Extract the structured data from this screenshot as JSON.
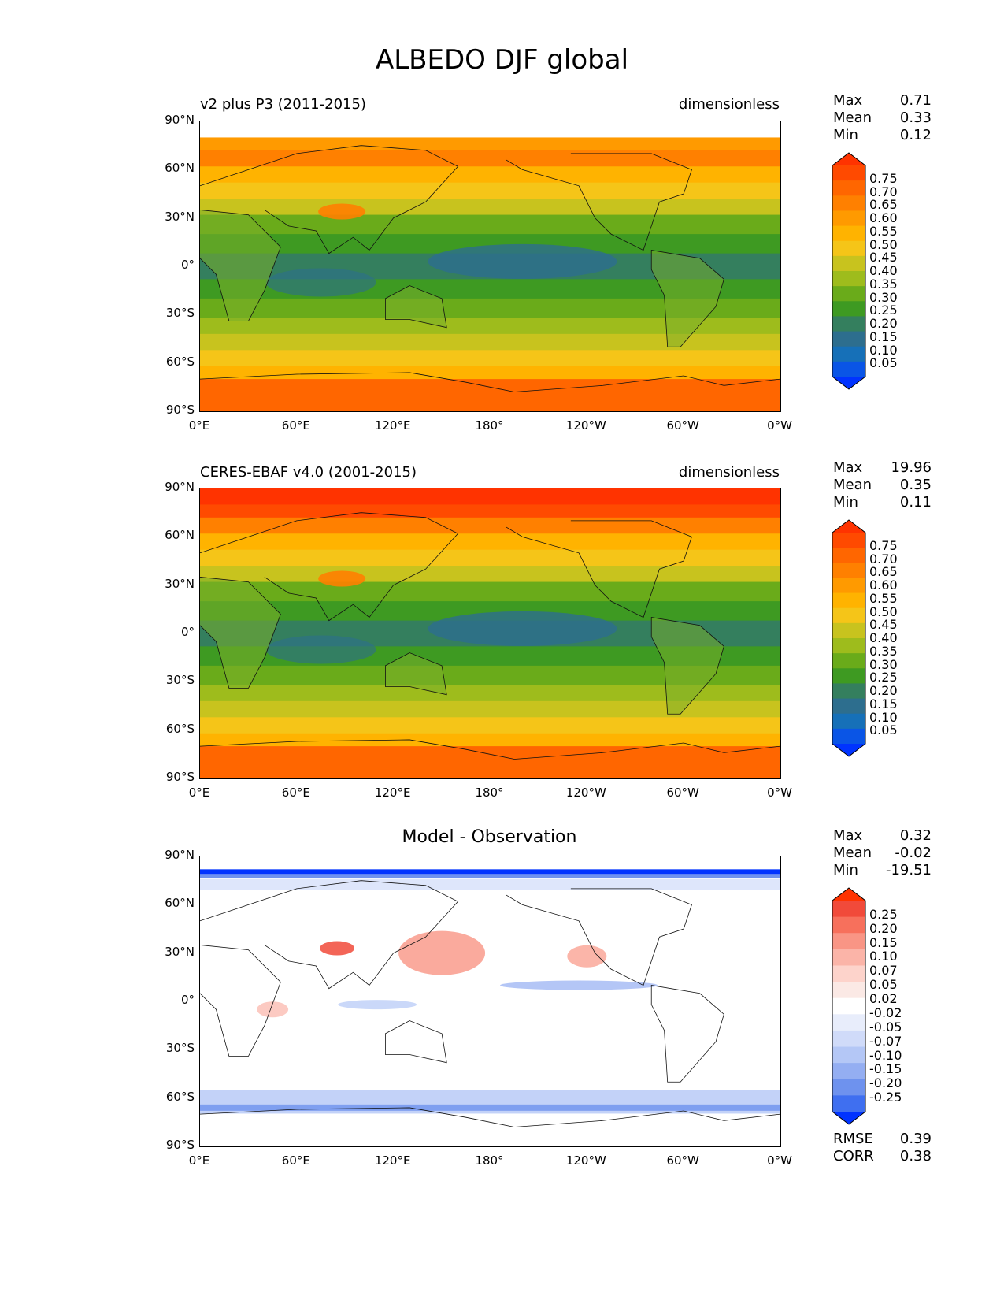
{
  "title": "ALBEDO DJF global",
  "lat_ticks": [
    "90°N",
    "60°N",
    "30°N",
    "0°",
    "30°S",
    "60°S",
    "90°S"
  ],
  "lon_ticks": [
    "0°E",
    "60°E",
    "120°E",
    "180°",
    "120°W",
    "60°W",
    "0°W"
  ],
  "abs_levels": [
    "0.75",
    "0.70",
    "0.65",
    "0.60",
    "0.55",
    "0.50",
    "0.45",
    "0.40",
    "0.35",
    "0.30",
    "0.25",
    "0.20",
    "0.15",
    "0.10",
    "0.05"
  ],
  "diff_levels": [
    "0.25",
    "0.20",
    "0.15",
    "0.10",
    "0.07",
    "0.05",
    "0.02",
    "-0.02",
    "-0.05",
    "-0.07",
    "-0.10",
    "-0.15",
    "-0.20",
    "-0.25"
  ],
  "abs_colors": [
    "#ff3300",
    "#ff4a00",
    "#ff6600",
    "#ff8000",
    "#ff9a00",
    "#ffb300",
    "#f5c518",
    "#c8c31e",
    "#9ebc1c",
    "#6aab1a",
    "#3e9a22",
    "#347f5e",
    "#2d6e8e",
    "#1670b8",
    "#0a55e6",
    "#0033ff"
  ],
  "diff_colors": [
    "#ff3300",
    "#f14a3a",
    "#f7705c",
    "#f99585",
    "#fbb4a8",
    "#fdd3cb",
    "#fbe9e5",
    "#ffffff",
    "#e8edfb",
    "#d0dbf9",
    "#b4c7f6",
    "#94aef2",
    "#6e92ee",
    "#3f6ff0",
    "#0033ff"
  ],
  "panels": [
    {
      "title": "v2 plus P3 (2011-2015)",
      "units": "dimensionless",
      "stats": [
        {
          "label": "Max",
          "value": "0.71"
        },
        {
          "label": "Mean",
          "value": "0.33"
        },
        {
          "label": "Min",
          "value": "0.12"
        }
      ]
    },
    {
      "title": "CERES-EBAF v4.0 (2001-2015)",
      "units": "dimensionless",
      "stats": [
        {
          "label": "Max",
          "value": "19.96"
        },
        {
          "label": "Mean",
          "value": "0.35"
        },
        {
          "label": "Min",
          "value": "0.11"
        }
      ]
    },
    {
      "title": "Model - Observation",
      "units": "",
      "stats": [
        {
          "label": "Max",
          "value": "0.32"
        },
        {
          "label": "Mean",
          "value": "-0.02"
        },
        {
          "label": "Min",
          "value": "-19.51"
        }
      ],
      "extra_stats": [
        {
          "label": "RMSE",
          "value": "0.39"
        },
        {
          "label": "CORR",
          "value": "0.38"
        }
      ]
    }
  ]
}
